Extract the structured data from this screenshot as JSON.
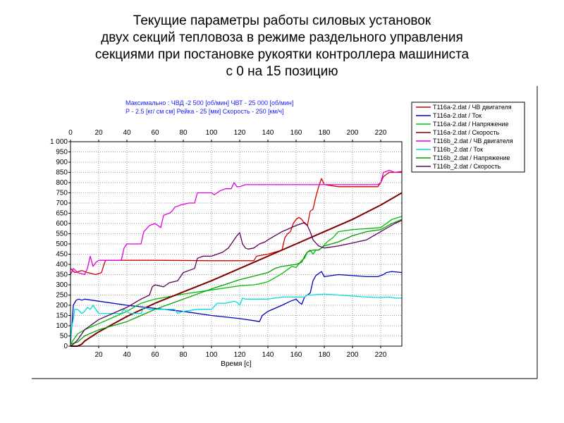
{
  "title": {
    "line1": "Текущие параметры работы силовых установок",
    "line2": "двух секций тепловоза в режиме раздельного управления",
    "line3": "секциями при постановке рукоятки контроллера машиниста",
    "line4": "с   0  на  15  позицию"
  },
  "maxima": {
    "line1": "Максимально :   ЧВД -2 500  [об/мин]    ЧВТ - 25 000 [об/мин]",
    "line2": "Р - 2.5 [кг/ см см]   Рейка - 25 [мм]  Скорость - 250 [км/ч]"
  },
  "chart_data": {
    "type": "line",
    "xlabel": "Время [c]",
    "xlim": [
      0,
      235
    ],
    "ylim": [
      0,
      1000
    ],
    "x_ticks": [
      0,
      20,
      40,
      60,
      80,
      100,
      120,
      140,
      160,
      180,
      200,
      220
    ],
    "y_ticks": [
      0,
      50,
      100,
      150,
      200,
      250,
      300,
      350,
      400,
      450,
      500,
      550,
      600,
      650,
      700,
      750,
      800,
      850,
      900,
      950,
      1000
    ],
    "y_tick_labels": [
      "0",
      "50",
      "100",
      "150",
      "200",
      "250",
      "300",
      "350",
      "400",
      "450",
      "500",
      "550",
      "600",
      "650",
      "700",
      "750",
      "800",
      "850",
      "900",
      "950",
      "1 000"
    ],
    "grid": true,
    "legend_position": "right",
    "series": [
      {
        "name": "Т116а-2.dat / ЧВ двигателя",
        "color": "#d40000",
        "points": [
          [
            0,
            380
          ],
          [
            3,
            360
          ],
          [
            8,
            370
          ],
          [
            12,
            360
          ],
          [
            18,
            350
          ],
          [
            22,
            360
          ],
          [
            24,
            405
          ],
          [
            25,
            420
          ],
          [
            60,
            420
          ],
          [
            100,
            418
          ],
          [
            130,
            418
          ],
          [
            132,
            440
          ],
          [
            136,
            445
          ],
          [
            140,
            450
          ],
          [
            150,
            470
          ],
          [
            152,
            530
          ],
          [
            154,
            550
          ],
          [
            156,
            560
          ],
          [
            158,
            600
          ],
          [
            160,
            620
          ],
          [
            162,
            630
          ],
          [
            164,
            620
          ],
          [
            166,
            600
          ],
          [
            168,
            590
          ],
          [
            170,
            660
          ],
          [
            172,
            670
          ],
          [
            174,
            730
          ],
          [
            176,
            780
          ],
          [
            178,
            820
          ],
          [
            180,
            790
          ],
          [
            190,
            780
          ],
          [
            210,
            780
          ],
          [
            218,
            780
          ],
          [
            220,
            800
          ],
          [
            222,
            830
          ],
          [
            226,
            850
          ],
          [
            235,
            850
          ]
        ]
      },
      {
        "name": "Т116а-2.dat / Ток",
        "color": "#0000c0",
        "points": [
          [
            0,
            20
          ],
          [
            1,
            100
          ],
          [
            2,
            200
          ],
          [
            4,
            225
          ],
          [
            6,
            230
          ],
          [
            8,
            225
          ],
          [
            10,
            230
          ],
          [
            20,
            220
          ],
          [
            40,
            200
          ],
          [
            60,
            185
          ],
          [
            80,
            170
          ],
          [
            100,
            150
          ],
          [
            120,
            135
          ],
          [
            130,
            125
          ],
          [
            134,
            120
          ],
          [
            136,
            150
          ],
          [
            140,
            170
          ],
          [
            150,
            200
          ],
          [
            156,
            220
          ],
          [
            160,
            230
          ],
          [
            162,
            215
          ],
          [
            164,
            205
          ],
          [
            166,
            240
          ],
          [
            170,
            260
          ],
          [
            172,
            320
          ],
          [
            174,
            345
          ],
          [
            176,
            355
          ],
          [
            178,
            365
          ],
          [
            180,
            340
          ],
          [
            190,
            350
          ],
          [
            200,
            345
          ],
          [
            210,
            340
          ],
          [
            218,
            340
          ],
          [
            220,
            345
          ],
          [
            222,
            350
          ],
          [
            224,
            360
          ],
          [
            228,
            365
          ],
          [
            235,
            360
          ]
        ]
      },
      {
        "name": "Т116а-2.dat / Напряжение",
        "color": "#00c000",
        "points": [
          [
            0,
            10
          ],
          [
            2,
            30
          ],
          [
            5,
            60
          ],
          [
            10,
            80
          ],
          [
            20,
            110
          ],
          [
            30,
            140
          ],
          [
            40,
            170
          ],
          [
            50,
            210
          ],
          [
            60,
            230
          ],
          [
            80,
            255
          ],
          [
            100,
            275
          ],
          [
            120,
            295
          ],
          [
            130,
            300
          ],
          [
            134,
            305
          ],
          [
            140,
            315
          ],
          [
            145,
            335
          ],
          [
            150,
            355
          ],
          [
            155,
            380
          ],
          [
            157,
            390
          ],
          [
            160,
            385
          ],
          [
            164,
            420
          ],
          [
            166,
            430
          ],
          [
            168,
            460
          ],
          [
            170,
            470
          ],
          [
            172,
            450
          ],
          [
            174,
            470
          ],
          [
            176,
            470
          ],
          [
            178,
            480
          ],
          [
            182,
            510
          ],
          [
            186,
            530
          ],
          [
            190,
            560
          ],
          [
            200,
            570
          ],
          [
            210,
            575
          ],
          [
            220,
            580
          ],
          [
            228,
            620
          ],
          [
            235,
            635
          ]
        ]
      },
      {
        "name": "Т116а-2.dat / Скорость",
        "color": "#800000",
        "points": [
          [
            0,
            0
          ],
          [
            5,
            0
          ],
          [
            8,
            10
          ],
          [
            10,
            25
          ],
          [
            20,
            70
          ],
          [
            40,
            145
          ],
          [
            60,
            210
          ],
          [
            80,
            265
          ],
          [
            100,
            320
          ],
          [
            120,
            380
          ],
          [
            140,
            440
          ],
          [
            160,
            500
          ],
          [
            180,
            560
          ],
          [
            200,
            620
          ],
          [
            220,
            690
          ],
          [
            235,
            750
          ]
        ]
      },
      {
        "name": "Т116b_2.dat / ЧВ двигателя",
        "color": "#e000e0",
        "points": [
          [
            0,
            350
          ],
          [
            2,
            380
          ],
          [
            5,
            360
          ],
          [
            10,
            350
          ],
          [
            12,
            380
          ],
          [
            14,
            440
          ],
          [
            16,
            390
          ],
          [
            18,
            410
          ],
          [
            20,
            420
          ],
          [
            30,
            420
          ],
          [
            36,
            420
          ],
          [
            38,
            480
          ],
          [
            40,
            500
          ],
          [
            50,
            500
          ],
          [
            52,
            560
          ],
          [
            56,
            590
          ],
          [
            60,
            600
          ],
          [
            64,
            580
          ],
          [
            66,
            640
          ],
          [
            70,
            650
          ],
          [
            72,
            660
          ],
          [
            74,
            680
          ],
          [
            78,
            690
          ],
          [
            84,
            700
          ],
          [
            88,
            700
          ],
          [
            90,
            750
          ],
          [
            100,
            750
          ],
          [
            102,
            740
          ],
          [
            106,
            760
          ],
          [
            110,
            770
          ],
          [
            114,
            770
          ],
          [
            116,
            800
          ],
          [
            118,
            780
          ],
          [
            120,
            780
          ],
          [
            124,
            790
          ],
          [
            130,
            790
          ],
          [
            140,
            790
          ],
          [
            150,
            790
          ],
          [
            160,
            790
          ],
          [
            170,
            790
          ],
          [
            180,
            790
          ],
          [
            190,
            790
          ],
          [
            200,
            790
          ],
          [
            210,
            790
          ],
          [
            218,
            790
          ],
          [
            220,
            800
          ],
          [
            222,
            850
          ],
          [
            226,
            860
          ],
          [
            230,
            850
          ],
          [
            235,
            855
          ]
        ]
      },
      {
        "name": "Т116b_2.dat / Ток",
        "color": "#00dede",
        "points": [
          [
            0,
            30
          ],
          [
            1,
            100
          ],
          [
            2,
            130
          ],
          [
            3,
            180
          ],
          [
            5,
            180
          ],
          [
            8,
            160
          ],
          [
            10,
            170
          ],
          [
            12,
            190
          ],
          [
            14,
            180
          ],
          [
            16,
            200
          ],
          [
            20,
            160
          ],
          [
            30,
            160
          ],
          [
            36,
            160
          ],
          [
            38,
            180
          ],
          [
            42,
            160
          ],
          [
            50,
            160
          ],
          [
            52,
            190
          ],
          [
            56,
            180
          ],
          [
            60,
            180
          ],
          [
            66,
            180
          ],
          [
            70,
            180
          ],
          [
            74,
            180
          ],
          [
            76,
            160
          ],
          [
            80,
            170
          ],
          [
            90,
            180
          ],
          [
            96,
            180
          ],
          [
            100,
            180
          ],
          [
            102,
            195
          ],
          [
            104,
            210
          ],
          [
            110,
            210
          ],
          [
            116,
            220
          ],
          [
            118,
            215
          ],
          [
            120,
            200
          ],
          [
            122,
            235
          ],
          [
            124,
            230
          ],
          [
            130,
            230
          ],
          [
            140,
            230
          ],
          [
            150,
            240
          ],
          [
            160,
            240
          ],
          [
            166,
            240
          ],
          [
            168,
            250
          ],
          [
            170,
            250
          ],
          [
            180,
            255
          ],
          [
            190,
            250
          ],
          [
            200,
            245
          ],
          [
            210,
            240
          ],
          [
            220,
            238
          ],
          [
            226,
            240
          ],
          [
            230,
            235
          ],
          [
            235,
            235
          ]
        ]
      },
      {
        "name": "Т116b_2.dat / Напряжение",
        "color": "#00a000",
        "points": [
          [
            0,
            10
          ],
          [
            5,
            20
          ],
          [
            10,
            50
          ],
          [
            20,
            80
          ],
          [
            30,
            100
          ],
          [
            40,
            120
          ],
          [
            50,
            150
          ],
          [
            60,
            180
          ],
          [
            80,
            230
          ],
          [
            100,
            280
          ],
          [
            120,
            325
          ],
          [
            140,
            360
          ],
          [
            145,
            380
          ],
          [
            150,
            390
          ],
          [
            155,
            395
          ],
          [
            160,
            400
          ],
          [
            164,
            410
          ],
          [
            166,
            440
          ],
          [
            168,
            460
          ],
          [
            172,
            470
          ],
          [
            176,
            470
          ],
          [
            180,
            490
          ],
          [
            190,
            510
          ],
          [
            200,
            540
          ],
          [
            210,
            560
          ],
          [
            220,
            570
          ],
          [
            228,
            600
          ],
          [
            235,
            620
          ]
        ]
      },
      {
        "name": "Т116b_2.dat / Скорость",
        "color": "#5a005a",
        "points": [
          [
            0,
            0
          ],
          [
            2,
            10
          ],
          [
            5,
            30
          ],
          [
            10,
            80
          ],
          [
            20,
            130
          ],
          [
            30,
            160
          ],
          [
            40,
            190
          ],
          [
            50,
            230
          ],
          [
            56,
            250
          ],
          [
            58,
            290
          ],
          [
            60,
            300
          ],
          [
            66,
            290
          ],
          [
            70,
            310
          ],
          [
            76,
            320
          ],
          [
            80,
            360
          ],
          [
            84,
            370
          ],
          [
            88,
            380
          ],
          [
            90,
            430
          ],
          [
            94,
            440
          ],
          [
            100,
            440
          ],
          [
            104,
            450
          ],
          [
            108,
            460
          ],
          [
            112,
            480
          ],
          [
            114,
            500
          ],
          [
            116,
            520
          ],
          [
            118,
            540
          ],
          [
            120,
            555
          ],
          [
            122,
            500
          ],
          [
            124,
            480
          ],
          [
            126,
            475
          ],
          [
            130,
            480
          ],
          [
            134,
            500
          ],
          [
            138,
            510
          ],
          [
            140,
            520
          ],
          [
            150,
            560
          ],
          [
            160,
            590
          ],
          [
            166,
            605
          ],
          [
            168,
            590
          ],
          [
            170,
            560
          ],
          [
            172,
            520
          ],
          [
            176,
            490
          ],
          [
            180,
            480
          ],
          [
            190,
            490
          ],
          [
            200,
            505
          ],
          [
            210,
            520
          ],
          [
            220,
            560
          ],
          [
            230,
            600
          ],
          [
            235,
            615
          ]
        ]
      }
    ]
  }
}
